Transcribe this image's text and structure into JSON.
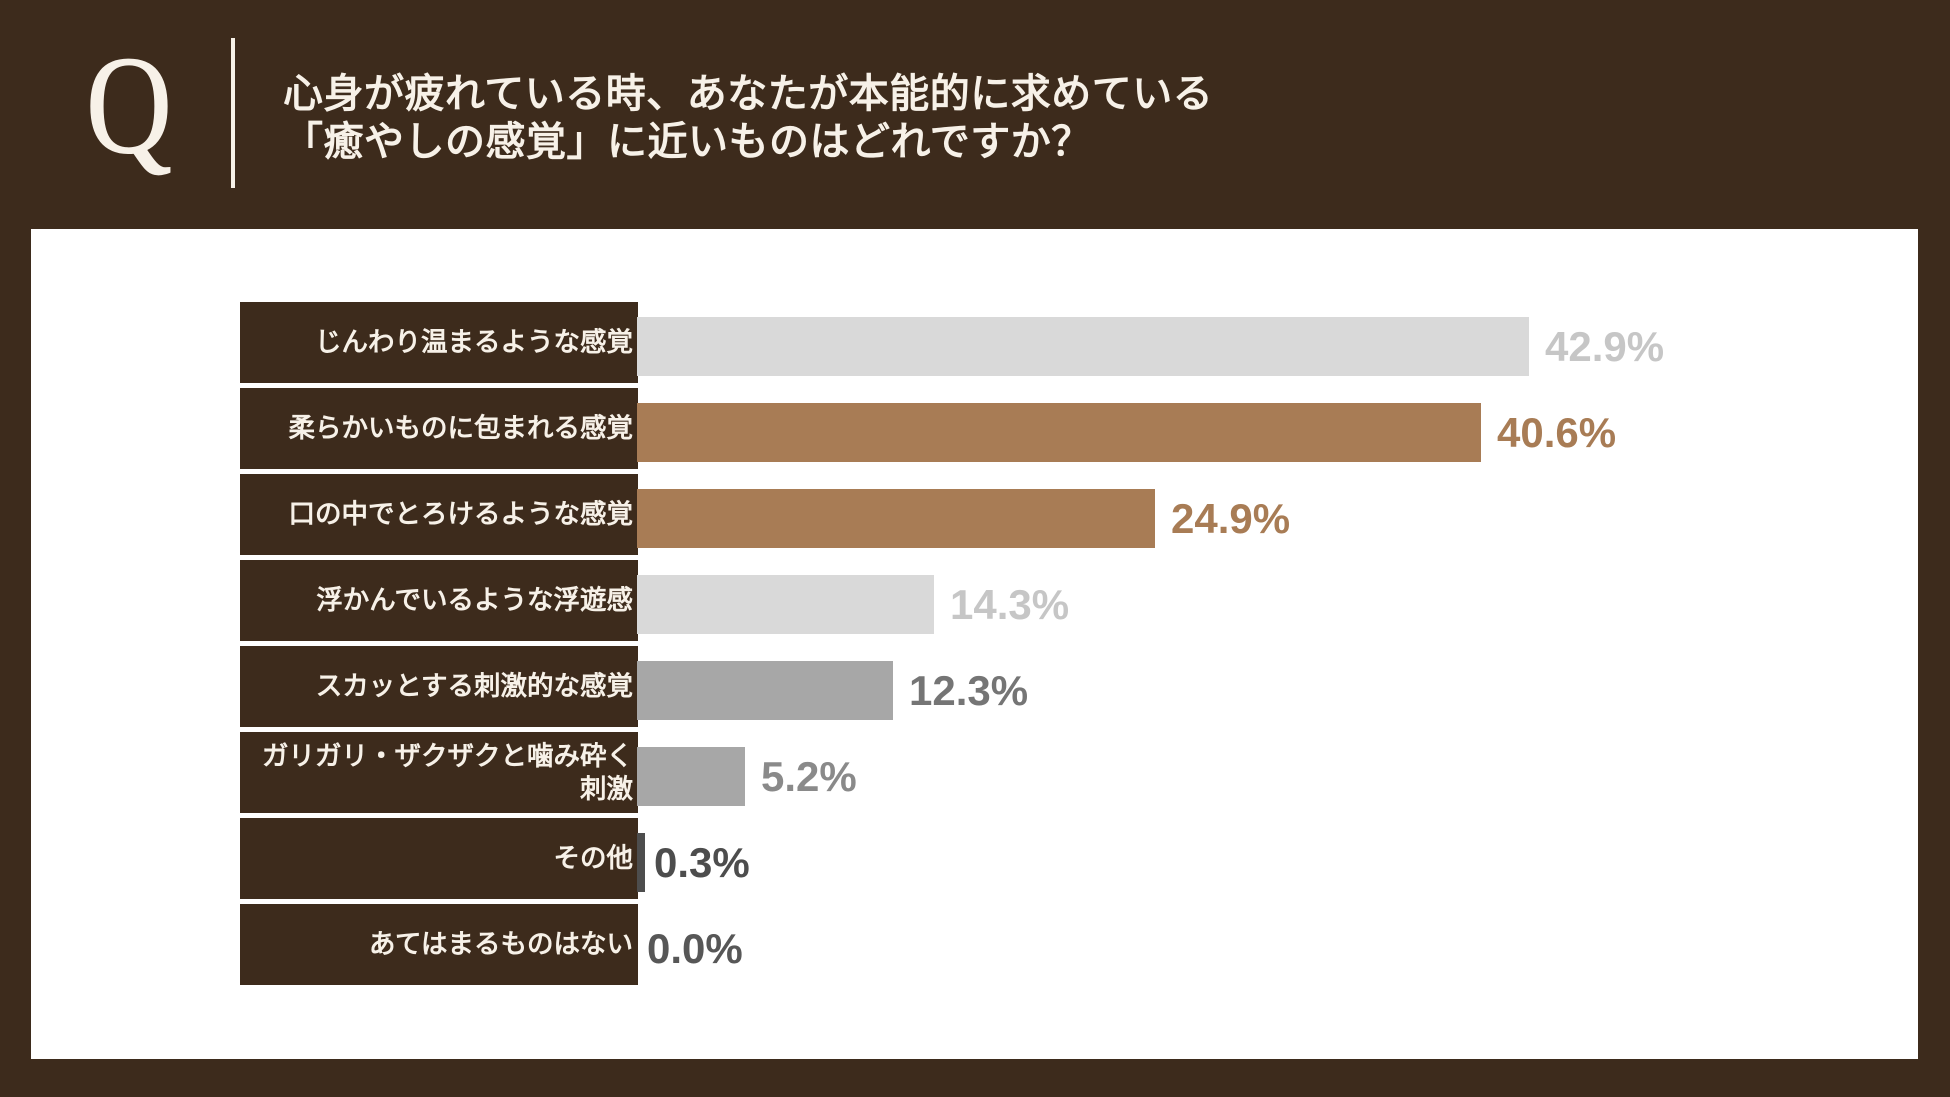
{
  "header": {
    "q_label": "Q",
    "question_line1": "心身が疲れている時、あなたが本能的に求めている",
    "question_line2": "「癒やしの感覚」に近いものはどれですか？"
  },
  "chart_data": {
    "type": "bar",
    "orientation": "horizontal",
    "unit": "%",
    "categories": [
      "じんわり温まるような感覚",
      "柔らかいものに包まれる感覚",
      "口の中でとろけるような感覚",
      "浮かんでいるような浮遊感",
      "スカッとする刺激的な感覚",
      "ガリガリ・ザクザクと噛み砕く\n刺激",
      "その他",
      "あてはまるものはない"
    ],
    "values": [
      42.9,
      40.6,
      24.9,
      14.3,
      12.3,
      5.2,
      0.3,
      0.0
    ],
    "value_labels": [
      "42.9%",
      "40.6%",
      "24.9%",
      "14.3%",
      "12.3%",
      "5.2%",
      "0.3%",
      "0.0%"
    ],
    "bar_colors": [
      "#D9D9D9",
      "#A87C55",
      "#A87C55",
      "#D9D9D9",
      "#A7A7A7",
      "#A7A7A7",
      "#4D4D4D",
      null
    ],
    "value_label_colors": [
      "#C6C6C6",
      "#A87C55",
      "#A87C55",
      "#C6C6C6",
      "#757575",
      "#8A8A8A",
      "#4D4D4D",
      "#575757"
    ],
    "xlim": [
      0,
      48
    ],
    "grid": false,
    "legend": false
  },
  "colors": {
    "background": "#3D2B1C",
    "panel": "#FFFFFF",
    "header_text": "#F7F1E8"
  }
}
